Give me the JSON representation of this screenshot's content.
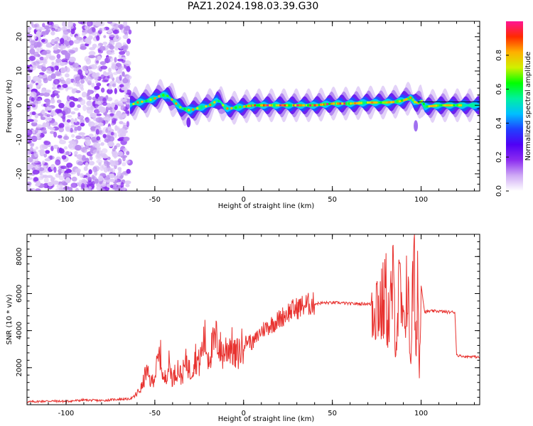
{
  "title": "PAZ1.2024.198.03.39.G30",
  "colors": {
    "snr_line": "#e8322f",
    "axis": "#000000",
    "colormap": [
      "#ffffff",
      "#cfaaf5",
      "#8c2cf0",
      "#5000f5",
      "#2040ff",
      "#00bfff",
      "#00f0a0",
      "#00ff00",
      "#d0f000",
      "#ffb000",
      "#ff2a00",
      "#ff1493"
    ]
  },
  "chart_data": [
    {
      "type": "heatmap",
      "xlabel": "Height of straight line (km)",
      "ylabel": "Frequency (Hz)",
      "xlim": [
        -122,
        133
      ],
      "ylim": [
        -25,
        24.5
      ],
      "xticks": [
        -100,
        -50,
        0,
        50,
        100
      ],
      "yticks": [
        -20,
        -10,
        0,
        10,
        20
      ],
      "noise_region_x": [
        -122,
        -64
      ],
      "ridge": {
        "x": [
          -64,
          -60,
          -55,
          -50,
          -46,
          -43,
          -40,
          -37,
          -35,
          -32,
          -30,
          -27,
          -24,
          -20,
          -17,
          -15,
          -13,
          -11,
          -9,
          -7,
          -5,
          -2,
          0,
          5,
          10,
          20,
          30,
          40,
          50,
          60,
          70,
          80,
          85,
          88,
          90,
          92,
          94,
          96,
          98,
          100,
          102,
          110,
          120,
          125,
          130,
          133
        ],
        "y": [
          0.0,
          0.8,
          1.2,
          2.0,
          3.0,
          2.8,
          1.5,
          0.0,
          -0.8,
          -1.3,
          -1.5,
          -1.0,
          -0.6,
          -0.2,
          0.6,
          1.5,
          1.0,
          -0.4,
          -1.0,
          -0.9,
          -0.7,
          -0.5,
          -0.4,
          0.0,
          0.0,
          0.0,
          0.0,
          0.0,
          0.5,
          0.5,
          0.8,
          0.8,
          1.0,
          1.2,
          1.5,
          1.8,
          2.2,
          1.0,
          0.6,
          1.2,
          -0.4,
          0.0,
          0.0,
          0.0,
          0.0,
          0.0
        ]
      },
      "colorbar": {
        "label": "Normalized spectral amplitude",
        "ticks": [
          "0.0",
          "0.2",
          "0.4",
          "0.6",
          "0.8"
        ],
        "range": [
          0,
          1
        ]
      }
    },
    {
      "type": "line",
      "xlabel": "Height of straight line (km)",
      "ylabel": "SNR (10 * v/v)",
      "xlim": [
        -122,
        133
      ],
      "ylim": [
        0,
        9200
      ],
      "xticks": [
        -100,
        -50,
        0,
        50,
        100
      ],
      "yticks": [
        2000,
        4000,
        6000,
        8000
      ],
      "series": [
        {
          "x": [
            -122,
            -110,
            -100,
            -90,
            -80,
            -70,
            -65,
            -62,
            -60,
            -57,
            -55,
            -52,
            -50,
            -47,
            -45,
            -42,
            -40,
            -37,
            -35,
            -32,
            -30,
            -27,
            -25,
            -22,
            -20,
            -17,
            -15,
            -12,
            -10,
            -7,
            -5,
            -2,
            0,
            3,
            5,
            8,
            10,
            15,
            20,
            25,
            30,
            35,
            40,
            45,
            50,
            55,
            60,
            65,
            70,
            72,
            75,
            78,
            80,
            82,
            84,
            86,
            88,
            90,
            92,
            94,
            96,
            97,
            98,
            99,
            100,
            102,
            105,
            110,
            115,
            119,
            120,
            121,
            125,
            130,
            133
          ],
          "y": [
            150,
            200,
            180,
            250,
            220,
            300,
            300,
            400,
            600,
            1000,
            1800,
            1200,
            1600,
            2800,
            1200,
            2200,
            1400,
            2000,
            1500,
            2400,
            1700,
            2600,
            2200,
            3600,
            2600,
            3200,
            3600,
            2700,
            3000,
            3300,
            2600,
            2900,
            3300,
            3500,
            3300,
            3700,
            4000,
            4300,
            4600,
            5000,
            5200,
            5400,
            5450,
            5500,
            5500,
            5500,
            5450,
            5450,
            5450,
            5400,
            5600,
            5200,
            6000,
            4300,
            6500,
            3800,
            6300,
            3600,
            7000,
            2500,
            8000,
            2000,
            7500,
            1500,
            6500,
            5000,
            5050,
            5050,
            5000,
            5000,
            2700,
            2650,
            2600,
            2600,
            2550
          ]
        }
      ]
    }
  ]
}
